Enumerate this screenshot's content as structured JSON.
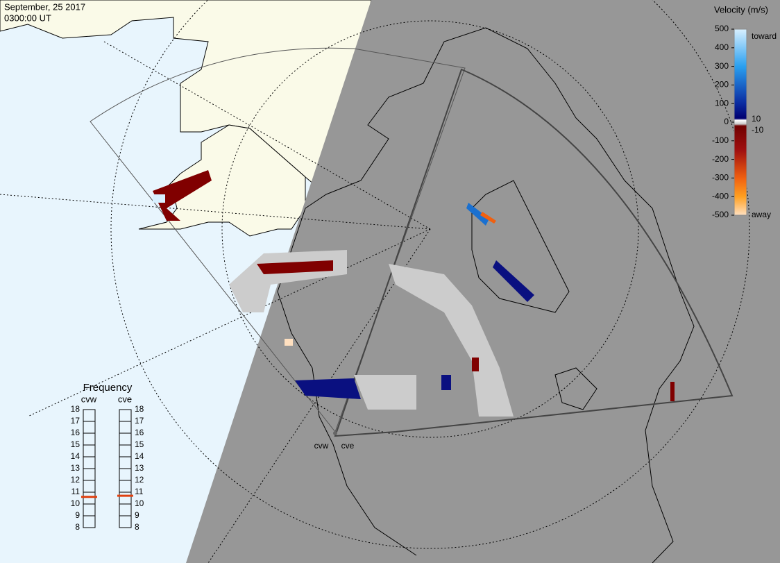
{
  "header": {
    "date": "September, 25 2017",
    "time": "0300:00 UT"
  },
  "colorbar": {
    "title": "Velocity (m/s)",
    "ticks": [
      500,
      400,
      300,
      200,
      100,
      0,
      -100,
      -200,
      -300,
      -400,
      -500
    ],
    "toward": "toward",
    "away": "away",
    "inner_labels": [
      "10",
      "-10"
    ]
  },
  "frequency": {
    "title": "Frequency",
    "radars": [
      {
        "name": "cvw",
        "value": 10.6
      },
      {
        "name": "cve",
        "value": 10.7
      }
    ],
    "ticks": [
      18,
      17,
      16,
      15,
      14,
      13,
      12,
      11,
      10,
      9,
      8
    ]
  },
  "radar_labels": [
    "cvw",
    "cve"
  ]
}
